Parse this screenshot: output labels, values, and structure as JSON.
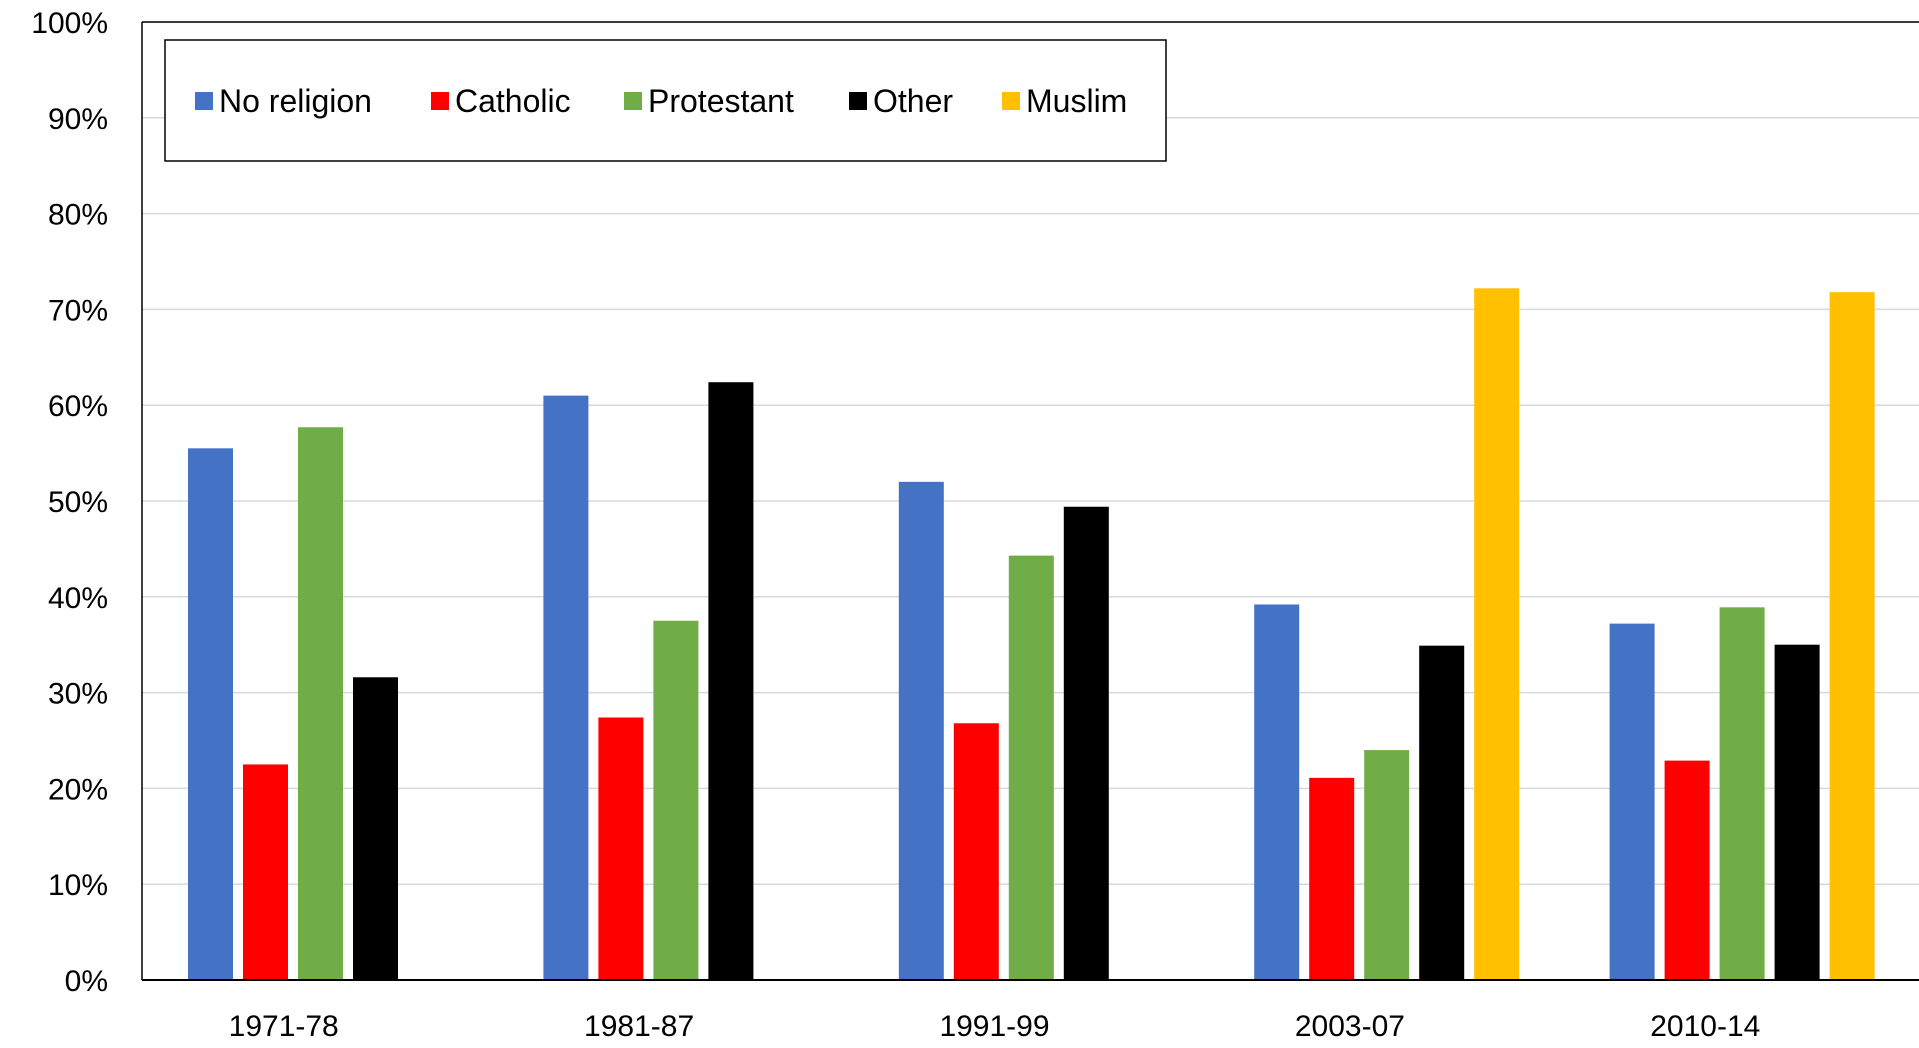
{
  "chart_data": {
    "type": "bar",
    "title": "",
    "xlabel": "",
    "ylabel": "",
    "categories": [
      "1971-78",
      "1981-87",
      "1991-99",
      "2003-07",
      "2010-14"
    ],
    "series": [
      {
        "name": "No religion",
        "color": "#4472C4",
        "values": [
          55.5,
          61.0,
          52.0,
          39.2,
          37.2
        ]
      },
      {
        "name": "Catholic",
        "color": "#FF0000",
        "values": [
          22.5,
          27.4,
          26.8,
          21.1,
          22.9
        ]
      },
      {
        "name": "Protestant",
        "color": "#70AD47",
        "values": [
          57.7,
          37.5,
          44.3,
          24.0,
          38.9
        ]
      },
      {
        "name": "Other",
        "color": "#000000",
        "values": [
          31.6,
          62.4,
          49.4,
          34.9,
          35.0
        ]
      },
      {
        "name": "Muslim",
        "color": "#FFC000",
        "values": [
          null,
          null,
          null,
          72.2,
          71.8
        ]
      }
    ],
    "ylim": [
      0,
      100
    ],
    "yticks": [
      "0%",
      "10%",
      "20%",
      "30%",
      "40%",
      "50%",
      "60%",
      "70%",
      "80%",
      "90%",
      "100%"
    ],
    "grid": true,
    "legend_position": "top-left"
  }
}
